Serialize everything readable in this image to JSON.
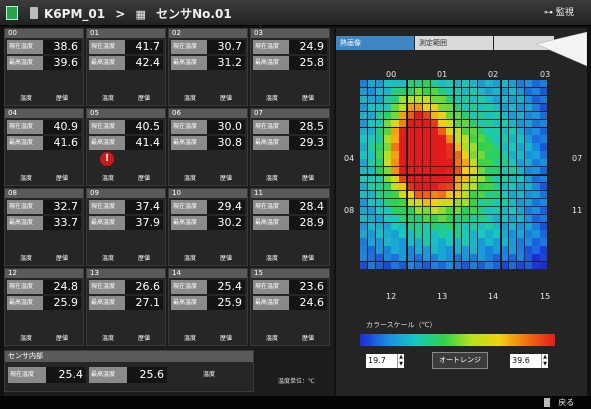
{
  "header": {
    "node": "K6PM_01",
    "separator": ">",
    "sensor": "センサNo.01",
    "right_button": "監視"
  },
  "tiles": [
    {
      "id": "00",
      "current": "38.6",
      "max": "39.6"
    },
    {
      "id": "01",
      "current": "41.7",
      "max": "42.4"
    },
    {
      "id": "02",
      "current": "30.7",
      "max": "31.2"
    },
    {
      "id": "03",
      "current": "24.9",
      "max": "25.8"
    },
    {
      "id": "04",
      "current": "40.9",
      "max": "41.6"
    },
    {
      "id": "05",
      "current": "40.5",
      "max": "41.4",
      "alert": "!"
    },
    {
      "id": "06",
      "current": "30.0",
      "max": "30.8"
    },
    {
      "id": "07",
      "current": "28.5",
      "max": "29.3"
    },
    {
      "id": "08",
      "current": "32.7",
      "max": "33.7"
    },
    {
      "id": "09",
      "current": "37.4",
      "max": "37.9"
    },
    {
      "id": "10",
      "current": "29.4",
      "max": "30.2"
    },
    {
      "id": "11",
      "current": "28.4",
      "max": "28.9"
    },
    {
      "id": "12",
      "current": "24.8",
      "max": "25.9"
    },
    {
      "id": "13",
      "current": "26.6",
      "max": "27.1"
    },
    {
      "id": "14",
      "current": "25.4",
      "max": "25.9"
    },
    {
      "id": "15",
      "current": "23.6",
      "max": "24.6"
    }
  ],
  "labels": {
    "current": "現在温度",
    "max": "最高温度",
    "btn_temp": "温度",
    "btn_hist": "歴値"
  },
  "internal": {
    "title": "センサ内部",
    "current": "25.4",
    "max": "25.6",
    "button": "温度"
  },
  "unit_note": "温度単位：℃",
  "right": {
    "tab_thermal": "熱画像",
    "tab_range": "測定範囲",
    "axis_top": [
      "00",
      "01",
      "02",
      "03"
    ],
    "axis_bottom": [
      "12",
      "13",
      "14",
      "15"
    ],
    "axis_left": [
      "04",
      "08"
    ],
    "axis_right": [
      "07",
      "11"
    ],
    "color_scale_label": "カラースケール（℃）",
    "scale_min": "19.7",
    "scale_max": "39.6",
    "auto_range": "オートレンジ"
  },
  "colors": {
    "active_tab": "#3f86c5",
    "alert": "#d01818"
  },
  "bottom": {
    "back": "戻る"
  }
}
